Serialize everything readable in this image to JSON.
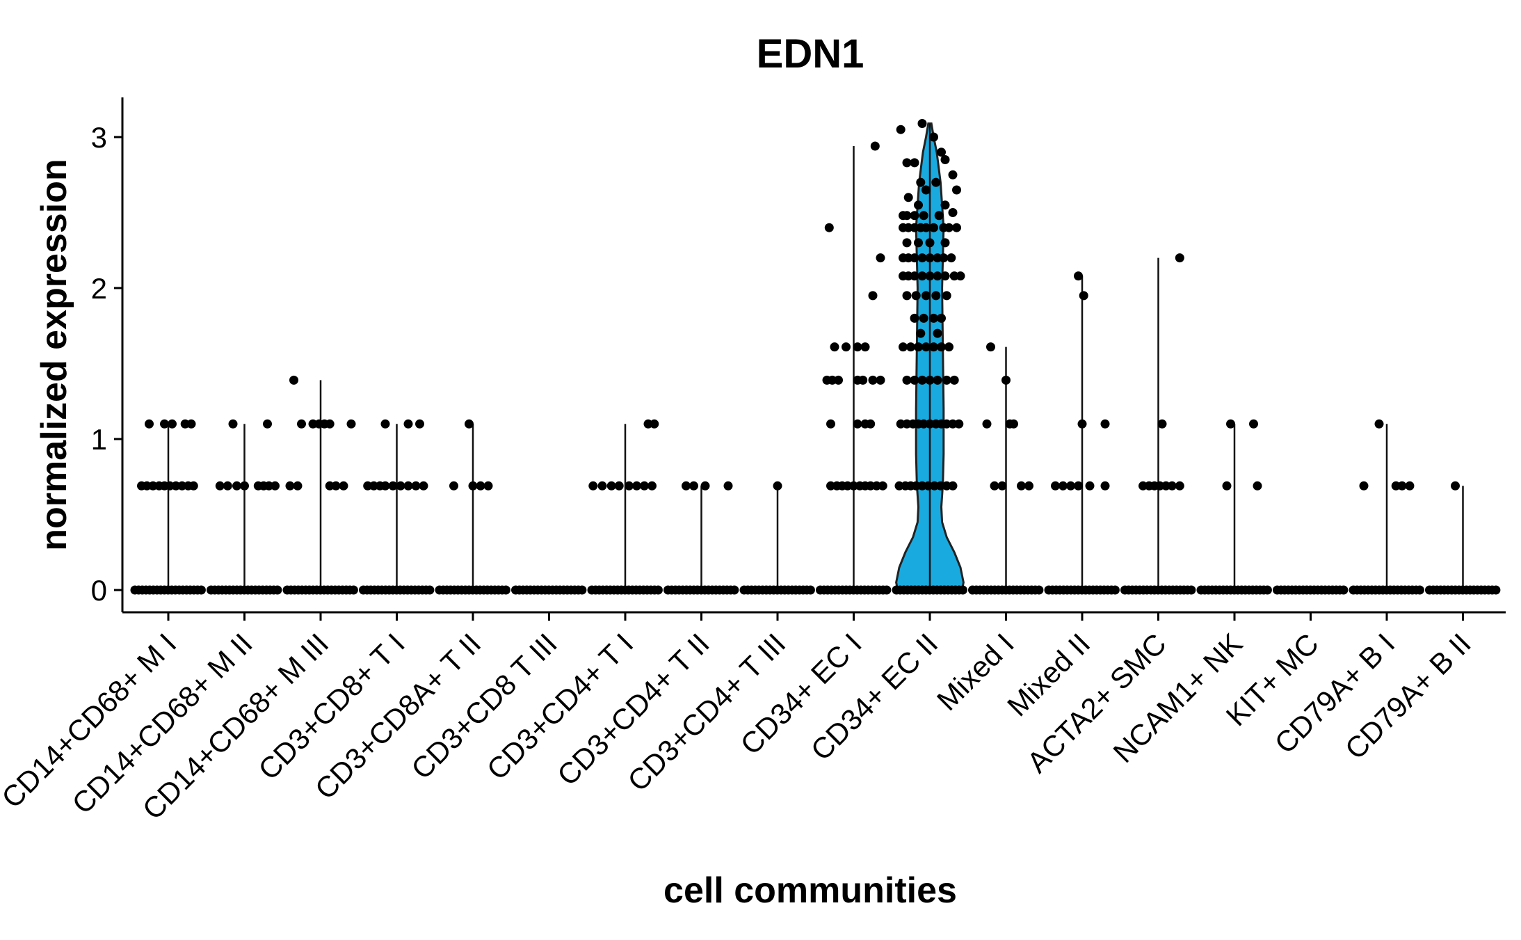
{
  "chart_data": {
    "type": "violin",
    "title": "EDN1",
    "xlabel": "cell communities",
    "ylabel": "normalized expression",
    "ylim": [
      -0.15,
      3.25
    ],
    "yticks": [
      0,
      1,
      2,
      3
    ],
    "grid": false,
    "legend": "none",
    "colors": {
      "violin_fill": "#19ABE0",
      "points": "#000000",
      "axis": "#000000"
    },
    "categories": [
      "CD14+CD68+ M I",
      "CD14+CD68+ M II",
      "CD14+CD68+ M III",
      "CD3+CD8+ T I",
      "CD3+CD8A+ T II",
      "CD3+CD8 T III",
      "CD3+CD4+ T I",
      "CD3+CD4+ T II",
      "CD3+CD4+ T III",
      "CD34+ EC I",
      "CD34+ EC II",
      "Mixed I",
      "Mixed II",
      "ACTA2+ SMC",
      "NCAM1+ NK",
      "KIT+ MC",
      "CD79A+ B I",
      "CD79A+ B II"
    ],
    "max_values": [
      1.1,
      1.1,
      1.39,
      1.1,
      1.1,
      0,
      1.1,
      0.69,
      0.69,
      2.94,
      3.09,
      1.61,
      2.08,
      2.2,
      1.1,
      0,
      1.1,
      0.69
    ],
    "points": [
      [
        [
          -0.25,
          1.1
        ],
        [
          -0.05,
          1.1
        ],
        [
          0.05,
          1.1
        ],
        [
          0.22,
          1.1
        ],
        [
          0.3,
          1.1
        ],
        [
          -0.35,
          0.69
        ],
        [
          -0.28,
          0.69
        ],
        [
          -0.2,
          0.69
        ],
        [
          -0.12,
          0.69
        ],
        [
          -0.05,
          0.69
        ],
        [
          0.02,
          0.69
        ],
        [
          0.1,
          0.69
        ],
        [
          0.18,
          0.69
        ],
        [
          0.26,
          0.69
        ],
        [
          0.33,
          0.69
        ]
      ],
      [
        [
          -0.15,
          1.1
        ],
        [
          0.3,
          1.1
        ],
        [
          -0.32,
          0.69
        ],
        [
          -0.22,
          0.69
        ],
        [
          -0.1,
          0.69
        ],
        [
          0.0,
          0.69
        ],
        [
          0.18,
          0.69
        ],
        [
          0.25,
          0.69
        ],
        [
          0.32,
          0.69
        ],
        [
          0.4,
          0.69
        ]
      ],
      [
        [
          -0.35,
          1.39
        ],
        [
          -0.25,
          1.1
        ],
        [
          -0.1,
          1.1
        ],
        [
          -0.02,
          1.1
        ],
        [
          0.05,
          1.1
        ],
        [
          0.12,
          1.1
        ],
        [
          0.4,
          1.1
        ],
        [
          -0.4,
          0.69
        ],
        [
          -0.3,
          0.69
        ],
        [
          0.12,
          0.69
        ],
        [
          0.2,
          0.69
        ],
        [
          0.3,
          0.69
        ]
      ],
      [
        [
          -0.15,
          1.1
        ],
        [
          0.15,
          1.1
        ],
        [
          0.3,
          1.1
        ],
        [
          -0.38,
          0.69
        ],
        [
          -0.3,
          0.69
        ],
        [
          -0.22,
          0.69
        ],
        [
          -0.15,
          0.69
        ],
        [
          -0.05,
          0.69
        ],
        [
          0.05,
          0.69
        ],
        [
          0.15,
          0.69
        ],
        [
          0.25,
          0.69
        ],
        [
          0.35,
          0.69
        ]
      ],
      [
        [
          -0.05,
          1.1
        ],
        [
          -0.25,
          0.69
        ],
        [
          0.0,
          0.69
        ],
        [
          0.1,
          0.69
        ],
        [
          0.2,
          0.69
        ]
      ],
      [],
      [
        [
          0.3,
          1.1
        ],
        [
          0.38,
          1.1
        ],
        [
          -0.42,
          0.69
        ],
        [
          -0.3,
          0.69
        ],
        [
          -0.18,
          0.69
        ],
        [
          -0.08,
          0.69
        ],
        [
          0.05,
          0.69
        ],
        [
          0.15,
          0.69
        ],
        [
          0.25,
          0.69
        ],
        [
          0.35,
          0.69
        ]
      ],
      [
        [
          -0.2,
          0.69
        ],
        [
          -0.1,
          0.69
        ],
        [
          0.05,
          0.69
        ],
        [
          0.35,
          0.69
        ]
      ],
      [
        [
          0.0,
          0.69
        ]
      ],
      [
        [
          -0.32,
          2.4
        ],
        [
          0.28,
          2.94
        ],
        [
          0.35,
          2.2
        ],
        [
          0.25,
          1.95
        ],
        [
          -0.25,
          1.61
        ],
        [
          -0.1,
          1.61
        ],
        [
          0.05,
          1.61
        ],
        [
          0.15,
          1.61
        ],
        [
          -0.35,
          1.39
        ],
        [
          -0.28,
          1.39
        ],
        [
          -0.2,
          1.39
        ],
        [
          0.05,
          1.39
        ],
        [
          0.12,
          1.39
        ],
        [
          0.25,
          1.39
        ],
        [
          0.35,
          1.39
        ],
        [
          -0.3,
          1.1
        ],
        [
          0.05,
          1.1
        ],
        [
          0.15,
          1.1
        ],
        [
          0.22,
          1.1
        ],
        [
          -0.3,
          0.69
        ],
        [
          -0.22,
          0.69
        ],
        [
          -0.15,
          0.69
        ],
        [
          -0.08,
          0.69
        ],
        [
          0.0,
          0.69
        ],
        [
          0.08,
          0.69
        ],
        [
          0.15,
          0.69
        ],
        [
          0.22,
          0.69
        ],
        [
          0.3,
          0.69
        ],
        [
          0.38,
          0.69
        ]
      ],
      [
        [
          -0.1,
          3.09
        ],
        [
          0.05,
          3.0
        ],
        [
          -0.38,
          3.05
        ],
        [
          0.15,
          2.9
        ],
        [
          0.2,
          2.85
        ],
        [
          -0.3,
          2.83
        ],
        [
          -0.2,
          2.83
        ],
        [
          0.3,
          2.75
        ],
        [
          -0.12,
          2.7
        ],
        [
          0.08,
          2.7
        ],
        [
          -0.05,
          2.65
        ],
        [
          0.35,
          2.65
        ],
        [
          -0.28,
          2.6
        ],
        [
          -0.15,
          2.55
        ],
        [
          0.2,
          2.55
        ],
        [
          -0.35,
          2.48
        ],
        [
          -0.3,
          2.48
        ],
        [
          -0.2,
          2.48
        ],
        [
          -0.08,
          2.48
        ],
        [
          0.12,
          2.48
        ],
        [
          0.3,
          2.5
        ],
        [
          -0.35,
          2.4
        ],
        [
          -0.28,
          2.4
        ],
        [
          -0.2,
          2.4
        ],
        [
          -0.12,
          2.4
        ],
        [
          -0.05,
          2.4
        ],
        [
          0.05,
          2.4
        ],
        [
          0.18,
          2.4
        ],
        [
          0.25,
          2.4
        ],
        [
          0.35,
          2.4
        ],
        [
          -0.3,
          2.3
        ],
        [
          -0.15,
          2.3
        ],
        [
          0.0,
          2.3
        ],
        [
          0.2,
          2.3
        ],
        [
          -0.35,
          2.2
        ],
        [
          -0.28,
          2.2
        ],
        [
          -0.2,
          2.2
        ],
        [
          -0.1,
          2.2
        ],
        [
          0.0,
          2.2
        ],
        [
          0.1,
          2.2
        ],
        [
          0.18,
          2.2
        ],
        [
          0.28,
          2.2
        ],
        [
          -0.35,
          2.08
        ],
        [
          -0.28,
          2.08
        ],
        [
          -0.2,
          2.08
        ],
        [
          -0.1,
          2.08
        ],
        [
          0.0,
          2.08
        ],
        [
          0.1,
          2.08
        ],
        [
          0.2,
          2.08
        ],
        [
          0.32,
          2.08
        ],
        [
          0.4,
          2.08
        ],
        [
          -0.3,
          1.95
        ],
        [
          -0.18,
          1.95
        ],
        [
          -0.05,
          1.95
        ],
        [
          0.08,
          1.95
        ],
        [
          0.22,
          1.95
        ],
        [
          -0.2,
          1.8
        ],
        [
          -0.08,
          1.8
        ],
        [
          0.05,
          1.8
        ],
        [
          0.15,
          1.8
        ],
        [
          -0.12,
          1.7
        ],
        [
          0.1,
          1.7
        ],
        [
          -0.35,
          1.61
        ],
        [
          -0.25,
          1.61
        ],
        [
          -0.15,
          1.61
        ],
        [
          -0.05,
          1.61
        ],
        [
          0.05,
          1.61
        ],
        [
          0.15,
          1.61
        ],
        [
          0.25,
          1.61
        ],
        [
          -0.3,
          1.39
        ],
        [
          -0.2,
          1.39
        ],
        [
          -0.1,
          1.39
        ],
        [
          0.0,
          1.39
        ],
        [
          0.1,
          1.39
        ],
        [
          0.22,
          1.39
        ],
        [
          0.32,
          1.39
        ],
        [
          -0.38,
          1.1
        ],
        [
          -0.3,
          1.1
        ],
        [
          -0.22,
          1.1
        ],
        [
          -0.15,
          1.1
        ],
        [
          -0.08,
          1.1
        ],
        [
          0.0,
          1.1
        ],
        [
          0.08,
          1.1
        ],
        [
          0.15,
          1.1
        ],
        [
          0.22,
          1.1
        ],
        [
          0.3,
          1.1
        ],
        [
          0.38,
          1.1
        ],
        [
          -0.4,
          0.69
        ],
        [
          -0.32,
          0.69
        ],
        [
          -0.25,
          0.69
        ],
        [
          -0.18,
          0.69
        ],
        [
          -0.1,
          0.69
        ],
        [
          -0.02,
          0.69
        ],
        [
          0.06,
          0.69
        ],
        [
          0.14,
          0.69
        ],
        [
          0.22,
          0.69
        ],
        [
          0.3,
          0.69
        ]
      ],
      [
        [
          -0.25,
          1.1
        ],
        [
          0.0,
          1.39
        ],
        [
          0.05,
          1.1
        ],
        [
          0.1,
          1.1
        ],
        [
          -0.2,
          1.61
        ],
        [
          -0.15,
          0.69
        ],
        [
          -0.05,
          0.69
        ],
        [
          0.2,
          0.69
        ],
        [
          0.3,
          0.69
        ]
      ],
      [
        [
          -0.05,
          2.08
        ],
        [
          0.02,
          1.95
        ],
        [
          0.0,
          1.1
        ],
        [
          0.3,
          1.1
        ],
        [
          -0.35,
          0.69
        ],
        [
          -0.25,
          0.69
        ],
        [
          -0.15,
          0.69
        ],
        [
          -0.05,
          0.69
        ],
        [
          0.1,
          0.69
        ],
        [
          0.3,
          0.69
        ]
      ],
      [
        [
          0.28,
          2.2
        ],
        [
          0.05,
          1.1
        ],
        [
          -0.2,
          0.69
        ],
        [
          -0.12,
          0.69
        ],
        [
          -0.05,
          0.69
        ],
        [
          0.02,
          0.69
        ],
        [
          0.1,
          0.69
        ],
        [
          0.18,
          0.69
        ],
        [
          0.28,
          0.69
        ]
      ],
      [
        [
          -0.05,
          1.1
        ],
        [
          0.25,
          1.1
        ],
        [
          -0.1,
          0.69
        ],
        [
          0.3,
          0.69
        ]
      ],
      [],
      [
        [
          -0.1,
          1.1
        ],
        [
          -0.3,
          0.69
        ],
        [
          0.12,
          0.69
        ],
        [
          0.2,
          0.69
        ],
        [
          0.3,
          0.69
        ]
      ],
      [
        [
          -0.1,
          0.69
        ]
      ]
    ],
    "violin_profile": {
      "category": "CD34+ EC II",
      "y": [
        0.0,
        0.05,
        0.15,
        0.25,
        0.35,
        0.45,
        0.55,
        0.7,
        0.9,
        1.2,
        1.6,
        2.0,
        2.4,
        2.7,
        2.9,
        3.0,
        3.09
      ],
      "halfwidth": [
        0.42,
        0.44,
        0.4,
        0.32,
        0.22,
        0.16,
        0.15,
        0.17,
        0.18,
        0.18,
        0.17,
        0.16,
        0.18,
        0.14,
        0.09,
        0.05,
        0.02
      ]
    }
  }
}
